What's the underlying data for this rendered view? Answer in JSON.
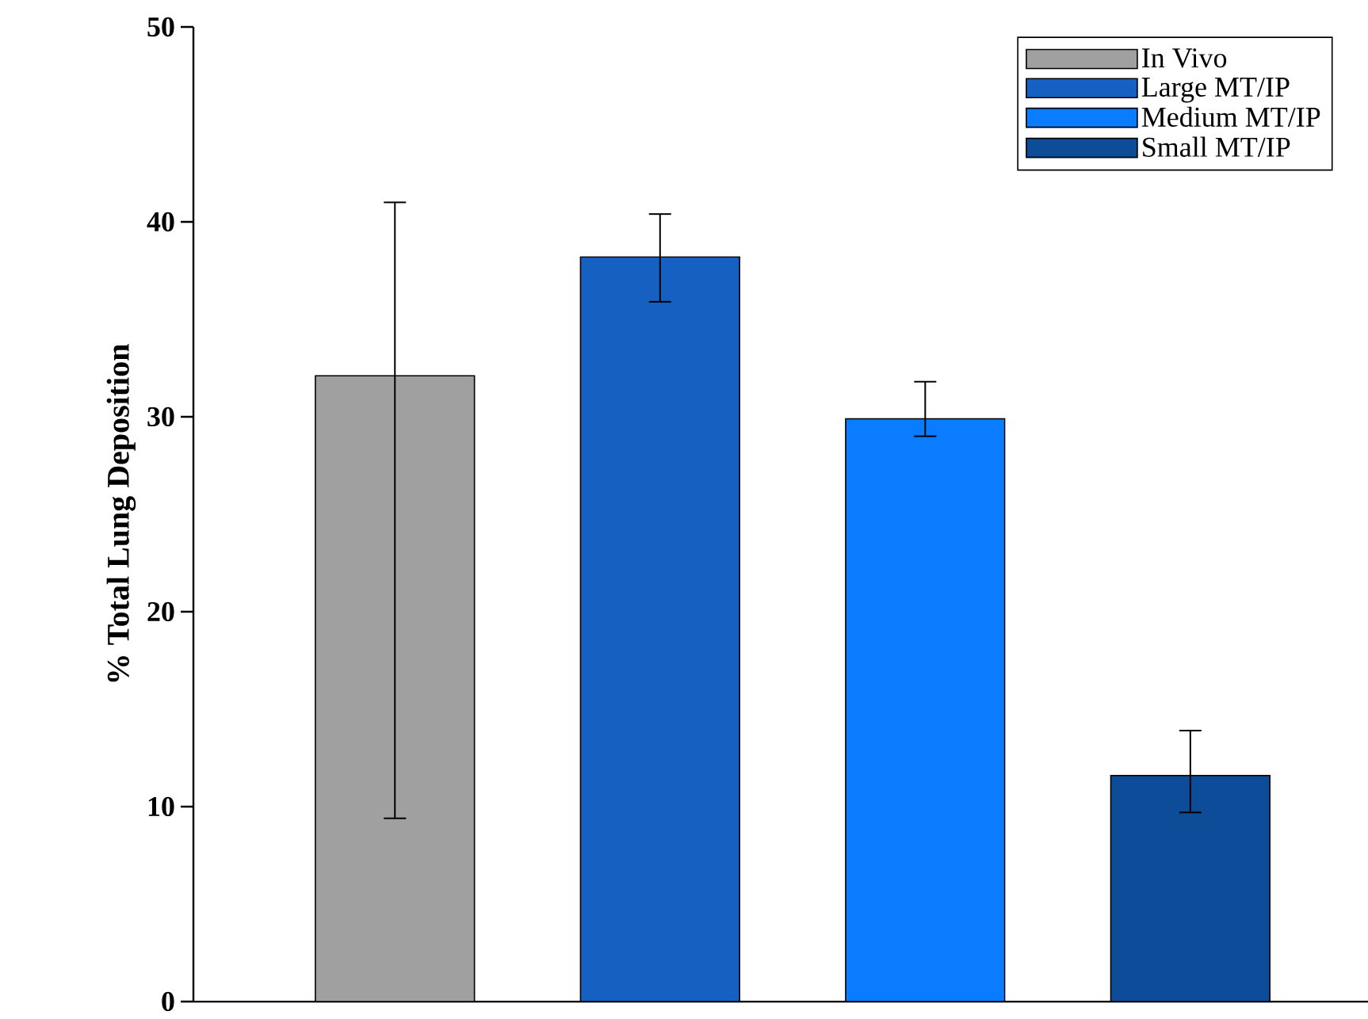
{
  "chart_data": {
    "type": "bar",
    "ylabel": "% Total Lung Deposition",
    "categories": [
      null,
      null,
      null,
      null
    ],
    "series": [
      {
        "name": "In Vivo",
        "color": "#a0a0a0",
        "values": [
          32.1,
          null,
          null,
          null
        ],
        "errors": [
          [
            9.4,
            41.0
          ],
          null,
          null,
          null
        ]
      },
      {
        "name": "Large MT/IP",
        "color": "#1560c0",
        "values": [
          null,
          38.2,
          null,
          null
        ],
        "errors": [
          null,
          [
            35.9,
            40.4
          ],
          null,
          null
        ]
      },
      {
        "name": "Medium MT/IP",
        "color": "#0a7cff",
        "values": [
          null,
          null,
          29.9,
          null
        ],
        "errors": [
          null,
          null,
          [
            29.0,
            31.8
          ],
          null
        ]
      },
      {
        "name": "Small MT/IP",
        "color": "#0d4c99",
        "values": [
          null,
          null,
          null,
          11.6
        ],
        "errors": [
          null,
          null,
          null,
          [
            9.7,
            13.9
          ]
        ]
      }
    ],
    "ylim": [
      0,
      50
    ],
    "yticks": [
      0,
      10,
      20,
      30,
      40,
      50
    ],
    "legend": "top right",
    "grid": false
  }
}
